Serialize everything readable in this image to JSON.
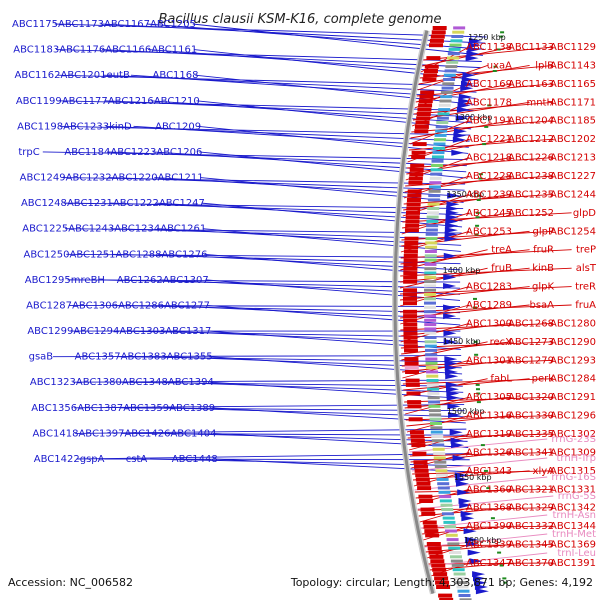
{
  "title": "Bacillus clausii KSM-K16, complete genome",
  "footer": {
    "accession": "Accession: NC_006582",
    "summary": "Topology: circular; Length: 4,303,871 bp; Genes: 4,192"
  },
  "colors": {
    "forward": "#1a1acc",
    "reverse": "#d40000",
    "rna": "#e98bc0",
    "backbone": "#888888"
  },
  "kbp_markers": [
    "1250 kbp",
    "1300 kbp",
    "1350 kbp",
    "1400 kbp",
    "1450 kbp",
    "1500 kbp",
    "1550 kbp",
    "1600 kbp"
  ],
  "left_labels": [
    "ABC1175",
    "ABC1173",
    "ABC1167",
    "ABC1205",
    "ABC1183",
    "ABC1176",
    "ABC1166",
    "ABC1161",
    "ABC1162",
    "ABC1201",
    "eutB",
    "ABC1168",
    "ABC1199",
    "ABC1177",
    "ABC1216",
    "ABC1210",
    "ABC1198",
    "ABC1233",
    "kinD",
    "ABC1209",
    "trpC",
    "ABC1184",
    "ABC1223",
    "ABC1206",
    "ABC1249",
    "ABC1232",
    "ABC1220",
    "ABC1211",
    "ABC1248",
    "ABC1231",
    "ABC1222",
    "ABC1247",
    "ABC1225",
    "ABC1243",
    "ABC1234",
    "ABC1261",
    "ABC1250",
    "ABC1251",
    "ABC1288",
    "ABC1276",
    "ABC1295",
    "mreBH",
    "ABC1262",
    "ABC1307",
    "ABC1287",
    "ABC1306",
    "ABC1286",
    "ABC1277",
    "ABC1299",
    "ABC1294",
    "ABC1303",
    "ABC1317",
    "gsaB",
    "ABC1357",
    "ABC1383",
    "ABC1355",
    "ABC1323",
    "ABC1380",
    "ABC1348",
    "ABC1394",
    "ABC1356",
    "ABC1387",
    "ABC1359",
    "ABC1389",
    "ABC1418",
    "ABC1397",
    "ABC1426",
    "ABC1404",
    "ABC1422",
    "gspA",
    "cstA",
    "ABC1448"
  ],
  "right_labels": [
    "ABC1129",
    "ABC1133",
    "ABC1138",
    "ABC1143",
    "lplB",
    "uxaA",
    "ABC1165",
    "ABC1163",
    "ABC1169",
    "ABC1171",
    "mntH",
    "ABC1178",
    "ABC1185",
    "ABC1204",
    "ABC1191",
    "ABC1202",
    "ABC1212",
    "ABC1221",
    "ABC1213",
    "ABC1226",
    "ABC1218",
    "ABC1227",
    "ABC1238",
    "ABC1228",
    "ABC1244",
    "ABC1235",
    "ABC1239",
    "glpD",
    "ABC1252",
    "ABC1245",
    "ABC1254",
    "glpP",
    "ABC1253",
    "treP",
    "fruR",
    "treA",
    "alsT",
    "kinB",
    "fruB",
    "treR",
    "glpK",
    "ABC1283",
    "fruA",
    "bsaA",
    "ABC1289",
    "ABC1280",
    "ABC1268",
    "ABC1300",
    "ABC1290",
    "ABC1273",
    "recX",
    "ABC1293",
    "ABC1279",
    "ABC1301",
    "ABC1284",
    "perk",
    "fabL",
    "ABC1291",
    "ABC1320",
    "ABC1305",
    "ABC1296",
    "ABC1330",
    "ABC1316",
    "ABC1302",
    "ABC1335",
    "ABC1319",
    "ABC1309",
    "ABC1341",
    "ABC1326",
    "ABC1315",
    "xlyA",
    "ABC1343",
    "ABC1331",
    "ABC1321",
    "ABC1360",
    "ABC1342",
    "ABC1329",
    "ABC1368",
    "ABC1344",
    "ABC1332",
    "ABC1390",
    "ABC1369",
    "ABC1345",
    "ABC1339",
    "ABC1391",
    "ABC1370",
    "ABC1347"
  ],
  "rna_labels": [
    "rrnG-23S",
    "trnH-Trp",
    "rrnG-16S",
    "rrnG-5S",
    "trnH-Asn",
    "trnH-Met",
    "trnI-Leu"
  ]
}
